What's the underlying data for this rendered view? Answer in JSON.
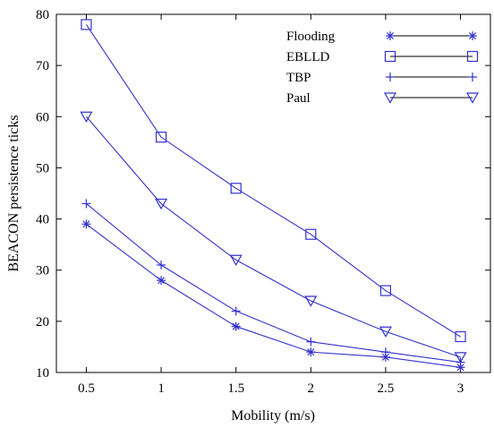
{
  "chart_data": {
    "type": "line",
    "title": "",
    "xlabel": "Mobility (m/s)",
    "ylabel": "BEACON persistence ticks",
    "x": [
      0.5,
      1,
      1.5,
      2,
      2.5,
      3
    ],
    "xticks": [
      "0.5",
      "1",
      "1.5",
      "2",
      "2.5",
      "3"
    ],
    "xlim": [
      0.3,
      3.2
    ],
    "ylim": [
      10,
      80
    ],
    "yticks": [
      "10",
      "20",
      "30",
      "40",
      "50",
      "60",
      "70",
      "80"
    ],
    "grid": false,
    "legend_position": "top-right",
    "line_color": "#3333cc",
    "series": [
      {
        "name": "Flooding",
        "marker": "asterisk",
        "values": [
          39,
          28,
          19,
          14,
          13,
          11
        ]
      },
      {
        "name": "EBLLD",
        "marker": "square",
        "values": [
          78,
          56,
          46,
          37,
          26,
          17
        ]
      },
      {
        "name": "TBP",
        "marker": "plus",
        "values": [
          43,
          31,
          22,
          16,
          14,
          12
        ]
      },
      {
        "name": "Paul",
        "marker": "triangle-down",
        "values": [
          60,
          43,
          32,
          24,
          18,
          13
        ]
      }
    ]
  }
}
